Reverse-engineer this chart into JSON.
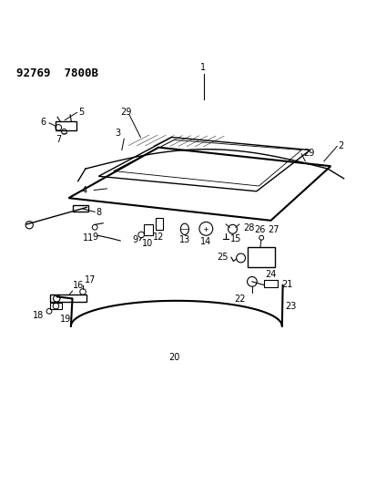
{
  "title_line1": "92769  7800B",
  "background": "#ffffff",
  "text_color": "#000000"
}
